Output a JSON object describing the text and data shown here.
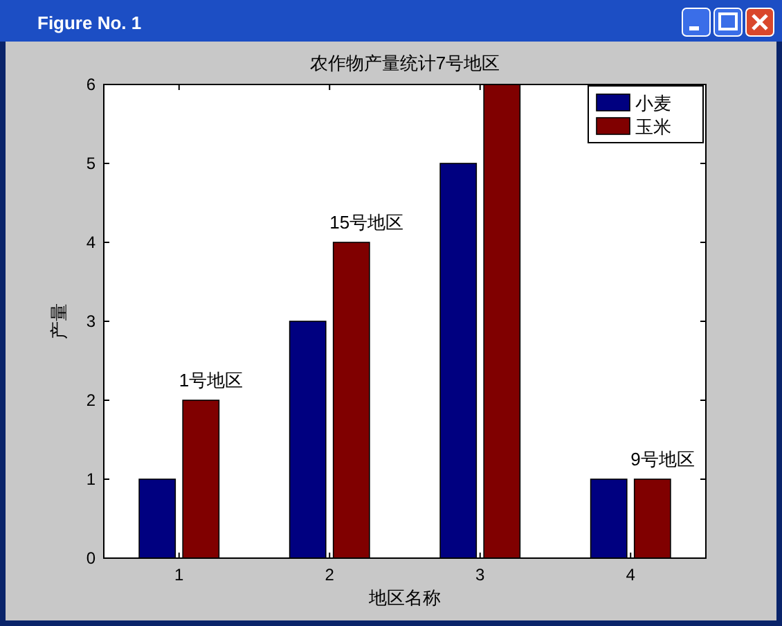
{
  "chart_data": {
    "type": "bar",
    "title": "农作物产量统计7号地区",
    "xlabel": "地区名称",
    "ylabel": "产量",
    "categories": [
      "1",
      "2",
      "3",
      "4"
    ],
    "series": [
      {
        "name": "小麦",
        "color": "#000080",
        "values": [
          1,
          3,
          5,
          1
        ]
      },
      {
        "name": "玉米",
        "color": "#800000",
        "values": [
          2,
          4,
          6,
          1
        ]
      }
    ],
    "ylim": [
      0,
      6
    ],
    "yticks": [
      0,
      1,
      2,
      3,
      4,
      5,
      6
    ],
    "legend": "top right",
    "annotations": [
      "Figure No. 1",
      {
        "text": "1号地区",
        "x": "1",
        "y": 2
      },
      {
        "text": "15号地区",
        "x": "2",
        "y": 4
      },
      {
        "text": "9号地区",
        "x": "4",
        "y": 1
      }
    ]
  }
}
